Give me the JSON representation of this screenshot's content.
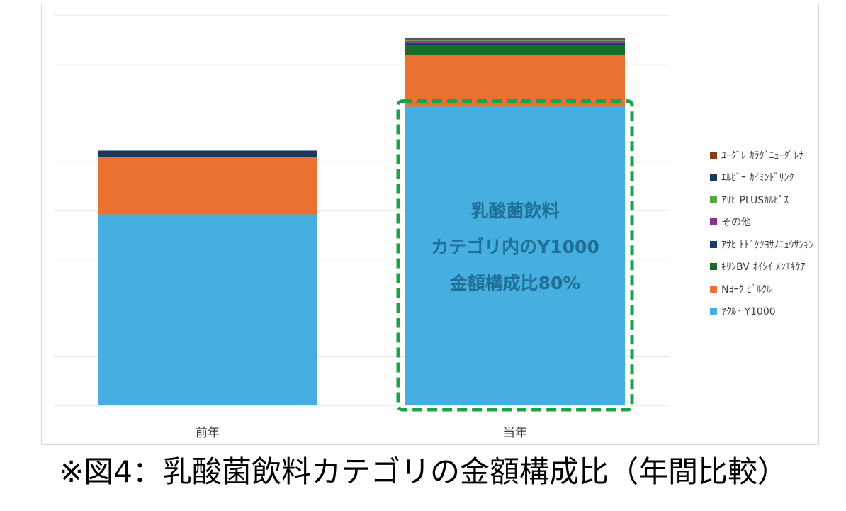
{
  "caption": "※図4：乳酸菌飲料カテゴリの金額構成比（年間比較）",
  "chart_data": {
    "type": "bar",
    "stacked": true,
    "categories": [
      "前年",
      "当年"
    ],
    "ylim": [
      0,
      8
    ],
    "grid": true,
    "legend_position": "right",
    "series": [
      {
        "name": "ﾔｸﾙﾄ Y1000",
        "color": "#47aee0",
        "values": [
          3.92,
          6.13
        ]
      },
      {
        "name": "Nﾖｰｸ ﾋﾟﾙｸﾙ",
        "color": "#ea7132",
        "values": [
          1.17,
          1.07
        ]
      },
      {
        "name": "ｷﾘﾝBV ｵｲｼｲ ﾒﾝｴｷｹｱ",
        "color": "#1d6b2a",
        "values": [
          0,
          0.2
        ]
      },
      {
        "name": "ｱｻﾋ ﾄﾄﾞｸﾂﾖｻﾉﾆｭｳｻﾝｷﾝ",
        "color": "#1d3a6b",
        "values": [
          0,
          0.05
        ]
      },
      {
        "name": "その他",
        "color": "#8e2d8e",
        "values": [
          0,
          0.03
        ]
      },
      {
        "name": "ｱｻﾋ PLUSｶﾙﾋﾟｽ",
        "color": "#57a83c",
        "values": [
          0,
          0.03
        ]
      },
      {
        "name": "ｴﾙﾋﾞｰ ｶｲﾐﾝﾄﾞﾘﾝｸ",
        "color": "#1a3a5c",
        "values": [
          0.14,
          0.02
        ]
      },
      {
        "name": "ﾕｰｸﾞﾚ ｶﾗﾀﾞﾆｭｰｸﾞﾚﾅ",
        "color": "#8b3a14",
        "values": [
          0,
          0.02
        ]
      }
    ],
    "annotation": {
      "lines": [
        "乳酸菌飲料",
        "カテゴリ内のY1000",
        "金額構成比80%"
      ],
      "color": "#1f6f96",
      "box_color": "#1aa34a",
      "category_index": 1
    }
  }
}
